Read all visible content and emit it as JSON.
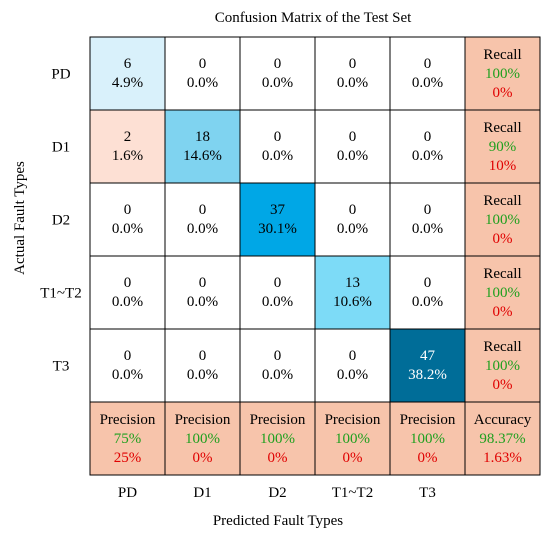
{
  "chart_data": {
    "type": "heatmap",
    "title": "Confusion Matrix of the Test Set",
    "xlabel": "Predicted Fault Types",
    "ylabel": "Actual Fault Types",
    "row_labels": [
      "PD",
      "D1",
      "D2",
      "T1~T2",
      "T3"
    ],
    "col_labels": [
      "PD",
      "D1",
      "D2",
      "T1~T2",
      "T3"
    ],
    "matrix": [
      [
        6,
        0,
        0,
        0,
        0
      ],
      [
        2,
        18,
        0,
        0,
        0
      ],
      [
        0,
        0,
        37,
        0,
        0
      ],
      [
        0,
        0,
        0,
        13,
        0
      ],
      [
        0,
        0,
        0,
        0,
        47
      ]
    ],
    "percents": [
      [
        "4.9%",
        "0.0%",
        "0.0%",
        "0.0%",
        "0.0%"
      ],
      [
        "1.6%",
        "14.6%",
        "0.0%",
        "0.0%",
        "0.0%"
      ],
      [
        "0.0%",
        "0.0%",
        "30.1%",
        "0.0%",
        "0.0%"
      ],
      [
        "0.0%",
        "0.0%",
        "0.0%",
        "10.6%",
        "0.0%"
      ],
      [
        "0.0%",
        "0.0%",
        "0.0%",
        "0.0%",
        "38.2%"
      ]
    ],
    "recall": [
      {
        "label": "Recall",
        "good": "100%",
        "bad": "0%"
      },
      {
        "label": "Recall",
        "good": "90%",
        "bad": "10%"
      },
      {
        "label": "Recall",
        "good": "100%",
        "bad": "0%"
      },
      {
        "label": "Recall",
        "good": "100%",
        "bad": "0%"
      },
      {
        "label": "Recall",
        "good": "100%",
        "bad": "0%"
      }
    ],
    "precision": [
      {
        "label": "Precision",
        "good": "75%",
        "bad": "25%"
      },
      {
        "label": "Precision",
        "good": "100%",
        "bad": "0%"
      },
      {
        "label": "Precision",
        "good": "100%",
        "bad": "0%"
      },
      {
        "label": "Precision",
        "good": "100%",
        "bad": "0%"
      },
      {
        "label": "Precision",
        "good": "100%",
        "bad": "0%"
      }
    ],
    "accuracy": {
      "label": "Accuracy",
      "good": "98.37%",
      "bad": "1.63%"
    },
    "colors": {
      "summary_fill": "#f7c4ab",
      "good_text": "#1fa01f",
      "bad_text": "#e00000",
      "border": "#000000",
      "empty_fill": "#ffffff",
      "correct_colors": [
        "#d9f1fb",
        "#7fd3f0",
        "#00a7e6",
        "#7ddbf7",
        "#006d98"
      ],
      "misclass_fill": "#fde0d4"
    }
  }
}
